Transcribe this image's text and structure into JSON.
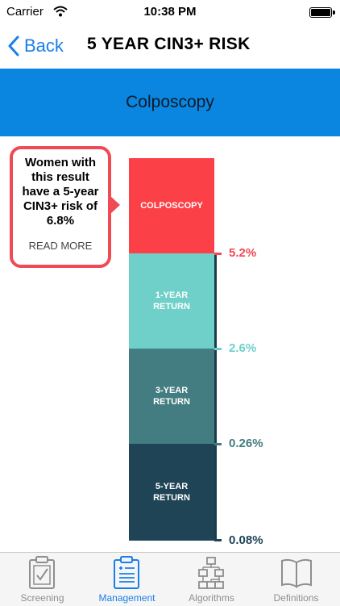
{
  "status_bar": {
    "carrier": "Carrier",
    "time": "10:38 PM"
  },
  "navbar": {
    "back_label": "Back",
    "title": "5 YEAR CIN3+ RISK"
  },
  "banner": {
    "title": "Colposcopy"
  },
  "callout": {
    "message": "Women with this result have a 5-year CIN3+ risk of 6.8%",
    "read_more": "READ MORE"
  },
  "risk_bars": [
    {
      "label": "COLPOSCOPY",
      "color": "#fc4048"
    },
    {
      "label": "1-YEAR RETURN",
      "color": "#6fd0c9"
    },
    {
      "label": "3-YEAR RETURN",
      "color": "#437d81"
    },
    {
      "label": "5-YEAR RETURN",
      "color": "#1f4456"
    }
  ],
  "thresholds": [
    {
      "label": "5.2%",
      "color": "#f04a55"
    },
    {
      "label": "2.6%",
      "color": "#6fd0c9"
    },
    {
      "label": "0.26%",
      "color": "#437d81"
    },
    {
      "label": "0.08%",
      "color": "#1f4456"
    }
  ],
  "tabs": [
    {
      "label": "Screening",
      "icon": "clipboard-check-icon",
      "active": false
    },
    {
      "label": "Management",
      "icon": "clipboard-list-icon",
      "active": true
    },
    {
      "label": "Algorithms",
      "icon": "flowchart-icon",
      "active": false
    },
    {
      "label": "Definitions",
      "icon": "book-icon",
      "active": false
    }
  ]
}
